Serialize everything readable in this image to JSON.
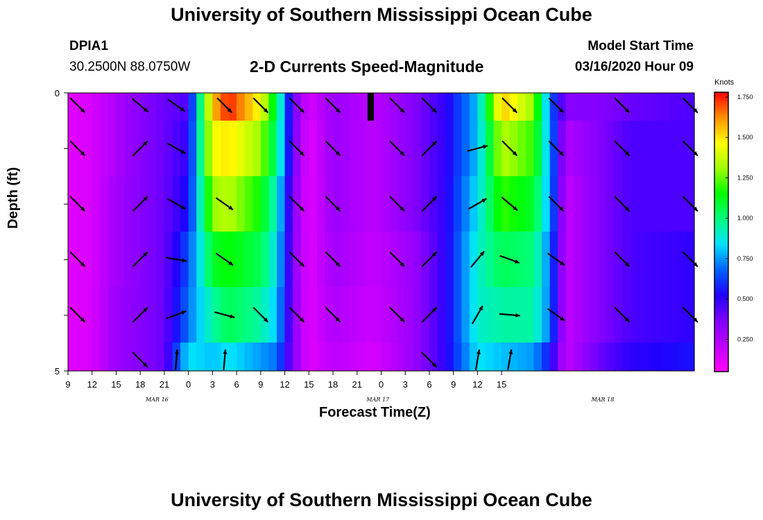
{
  "header": {
    "title": "University of Southern Mississippi Ocean Cube",
    "station_id": "DPIA1",
    "station_coords": "30.2500N 88.0750W",
    "plot_title": "2-D Currents Speed-Magnitude",
    "start_label": "Model Start Time",
    "start_value": "03/16/2020 Hour 09"
  },
  "footer": {
    "title": "University of Southern Mississippi Ocean Cube"
  },
  "chart_data": {
    "type": "heatmap",
    "xlabel": "Forecast Time(Z)",
    "ylabel": "Depth (ft)",
    "x_tick_labels": [
      "9",
      "12",
      "15",
      "18",
      "21",
      "0",
      "3",
      "6",
      "9",
      "12",
      "15",
      "18",
      "21",
      "0",
      "3",
      "6",
      "9",
      "12",
      "15"
    ],
    "date_labels": [
      {
        "label": "MAR 16",
        "hour_offset": 8.5
      },
      {
        "label": "MAR 17",
        "hour_offset": 36
      },
      {
        "label": "MAR 18",
        "hour_offset": 64
      }
    ],
    "y_tick_labels": [
      "0",
      "5"
    ],
    "ylim": [
      0,
      5
    ],
    "x_hours": 78,
    "colorbar": {
      "label": "Knots",
      "min": 0.05,
      "max": 1.78,
      "ticks": [
        0.25,
        0.5,
        0.75,
        1.0,
        1.25,
        1.5,
        1.75
      ],
      "tick_labels": [
        "0.250",
        "0.500",
        "0.750",
        "1.000",
        "1.250",
        "1.500",
        "1.750"
      ],
      "colors": [
        "#ff00ff",
        "#c000ff",
        "#8000ff",
        "#2000ff",
        "#0060ff",
        "#00e0ff",
        "#00ff80",
        "#00ff00",
        "#a0ff00",
        "#ffff00",
        "#ff9000",
        "#ff0000"
      ]
    },
    "speed_keyframes": [
      {
        "h": 0,
        "v": [
          0.12,
          0.12,
          0.12,
          0.12,
          0.12,
          0.12
        ]
      },
      {
        "h": 3,
        "v": [
          0.15,
          0.15,
          0.15,
          0.15,
          0.15,
          0.15
        ]
      },
      {
        "h": 6,
        "v": [
          0.25,
          0.25,
          0.28,
          0.28,
          0.3,
          0.3
        ]
      },
      {
        "h": 9,
        "v": [
          0.35,
          0.35,
          0.35,
          0.35,
          0.35,
          0.35
        ]
      },
      {
        "h": 12,
        "v": [
          0.4,
          0.4,
          0.4,
          0.4,
          0.4,
          0.4
        ]
      },
      {
        "h": 15,
        "v": [
          0.45,
          0.5,
          0.55,
          0.65,
          0.7,
          0.85
        ]
      },
      {
        "h": 18,
        "v": [
          1.55,
          1.45,
          1.3,
          1.1,
          0.95,
          0.8
        ]
      },
      {
        "h": 20,
        "v": [
          1.75,
          1.5,
          1.35,
          1.15,
          1.05,
          0.85
        ]
      },
      {
        "h": 24,
        "v": [
          1.45,
          1.3,
          1.15,
          1.05,
          0.95,
          0.75
        ]
      },
      {
        "h": 26,
        "v": [
          1.05,
          1.0,
          0.9,
          0.85,
          0.8,
          0.7
        ]
      },
      {
        "h": 28,
        "v": [
          0.4,
          0.4,
          0.35,
          0.35,
          0.35,
          0.35
        ]
      },
      {
        "h": 30,
        "v": [
          0.15,
          0.12,
          0.12,
          0.12,
          0.12,
          0.12
        ]
      },
      {
        "h": 33,
        "v": [
          0.3,
          0.3,
          0.3,
          0.28,
          0.25,
          0.22
        ]
      },
      {
        "h": 38,
        "v": [
          0.22,
          0.22,
          0.22,
          0.2,
          0.18,
          0.15
        ]
      },
      {
        "h": 43,
        "v": [
          0.35,
          0.35,
          0.35,
          0.3,
          0.3,
          0.3
        ]
      },
      {
        "h": 47,
        "v": [
          0.5,
          0.5,
          0.5,
          0.5,
          0.5,
          0.5
        ]
      },
      {
        "h": 51,
        "v": [
          0.8,
          0.8,
          0.85,
          0.9,
          0.9,
          0.85
        ]
      },
      {
        "h": 54,
        "v": [
          1.55,
          1.35,
          1.2,
          1.05,
          0.95,
          0.8
        ]
      },
      {
        "h": 58,
        "v": [
          1.3,
          1.2,
          1.1,
          1.0,
          0.95,
          0.75
        ]
      },
      {
        "h": 60,
        "v": [
          0.7,
          0.75,
          0.75,
          0.7,
          0.7,
          0.55
        ]
      },
      {
        "h": 62,
        "v": [
          0.35,
          0.25,
          0.2,
          0.2,
          0.2,
          0.2
        ]
      },
      {
        "h": 66,
        "v": [
          0.35,
          0.35,
          0.35,
          0.35,
          0.35,
          0.4
        ]
      },
      {
        "h": 70,
        "v": [
          0.4,
          0.45,
          0.45,
          0.45,
          0.45,
          0.5
        ]
      },
      {
        "h": 78,
        "v": [
          0.45,
          0.45,
          0.45,
          0.5,
          0.5,
          0.55
        ]
      }
    ],
    "vector_columns": [
      1.2,
      9,
      13.5,
      19.5,
      24,
      28.5,
      33,
      41,
      45,
      51,
      55,
      60.8,
      69,
      77.5
    ],
    "vector_angles_deg": [
      [
        45,
        45,
        45,
        45,
        45,
        45,
        45,
        45,
        45,
        45,
        45,
        45,
        45,
        45,
        45,
        45
      ],
      [
        45,
        135,
        30,
        45,
        45,
        45,
        45,
        45,
        135,
        45,
        135,
        45,
        45,
        45,
        45,
        45
      ]
    ],
    "vectors": [
      {
        "col": 0,
        "row": 0,
        "a": 45
      },
      {
        "col": 0,
        "row": 1,
        "a": 45
      },
      {
        "col": 0,
        "row": 2,
        "a": 45
      },
      {
        "col": 0,
        "row": 3,
        "a": 45
      },
      {
        "col": 0,
        "row": 4,
        "a": 45
      },
      {
        "col": 1,
        "row": 0,
        "a": 40
      },
      {
        "col": 1,
        "row": 1,
        "a": -45
      },
      {
        "col": 1,
        "row": 2,
        "a": -45
      },
      {
        "col": 1,
        "row": 3,
        "a": -45
      },
      {
        "col": 1,
        "row": 4,
        "a": -45
      },
      {
        "col": 1,
        "row": 5,
        "a": 45
      },
      {
        "col": 2,
        "row": 0,
        "a": 35
      },
      {
        "col": 2,
        "row": 1,
        "a": 30
      },
      {
        "col": 2,
        "row": 2,
        "a": 30
      },
      {
        "col": 2,
        "row": 3,
        "a": 10
      },
      {
        "col": 2,
        "row": 4,
        "a": -20
      },
      {
        "col": 2,
        "row": 5,
        "a": -85
      },
      {
        "col": 3,
        "row": 0,
        "a": 45
      },
      {
        "col": 3,
        "row": 2,
        "a": 35
      },
      {
        "col": 3,
        "row": 3,
        "a": 35
      },
      {
        "col": 3,
        "row": 4,
        "a": 15
      },
      {
        "col": 3,
        "row": 5,
        "a": -85
      },
      {
        "col": 4,
        "row": 0,
        "a": 45
      },
      {
        "col": 4,
        "row": 4,
        "a": 45
      },
      {
        "col": 5,
        "row": 0,
        "a": 45
      },
      {
        "col": 5,
        "row": 1,
        "a": 45
      },
      {
        "col": 5,
        "row": 2,
        "a": 45
      },
      {
        "col": 5,
        "row": 3,
        "a": 45
      },
      {
        "col": 5,
        "row": 4,
        "a": 45
      },
      {
        "col": 6,
        "row": 0,
        "a": 45
      },
      {
        "col": 6,
        "row": 1,
        "a": 45
      },
      {
        "col": 6,
        "row": 2,
        "a": 45
      },
      {
        "col": 6,
        "row": 3,
        "a": 45
      },
      {
        "col": 6,
        "row": 4,
        "a": 45
      },
      {
        "col": 7,
        "row": 0,
        "a": 45
      },
      {
        "col": 7,
        "row": 1,
        "a": 45
      },
      {
        "col": 7,
        "row": 2,
        "a": 45
      },
      {
        "col": 7,
        "row": 3,
        "a": 45
      },
      {
        "col": 7,
        "row": 4,
        "a": 45
      },
      {
        "col": 8,
        "row": 0,
        "a": 45
      },
      {
        "col": 8,
        "row": 1,
        "a": -45
      },
      {
        "col": 8,
        "row": 2,
        "a": -45
      },
      {
        "col": 8,
        "row": 3,
        "a": -45
      },
      {
        "col": 8,
        "row": 4,
        "a": -45
      },
      {
        "col": 8,
        "row": 5,
        "a": 45
      },
      {
        "col": 9,
        "row": 1,
        "a": -15
      },
      {
        "col": 9,
        "row": 2,
        "a": -30
      },
      {
        "col": 9,
        "row": 3,
        "a": -50
      },
      {
        "col": 9,
        "row": 4,
        "a": -60
      },
      {
        "col": 9,
        "row": 5,
        "a": -80
      },
      {
        "col": 10,
        "row": 0,
        "a": 45
      },
      {
        "col": 10,
        "row": 1,
        "a": 45
      },
      {
        "col": 10,
        "row": 2,
        "a": 40
      },
      {
        "col": 10,
        "row": 3,
        "a": 20
      },
      {
        "col": 10,
        "row": 4,
        "a": 5
      },
      {
        "col": 10,
        "row": 5,
        "a": -80
      },
      {
        "col": 11,
        "row": 0,
        "a": 45
      },
      {
        "col": 11,
        "row": 1,
        "a": 45
      },
      {
        "col": 11,
        "row": 2,
        "a": 45
      },
      {
        "col": 11,
        "row": 3,
        "a": 35
      },
      {
        "col": 11,
        "row": 4,
        "a": 35
      },
      {
        "col": 12,
        "row": 0,
        "a": 45
      },
      {
        "col": 12,
        "row": 1,
        "a": 45
      },
      {
        "col": 12,
        "row": 2,
        "a": 45
      },
      {
        "col": 12,
        "row": 3,
        "a": 45
      },
      {
        "col": 12,
        "row": 4,
        "a": 45
      },
      {
        "col": 13,
        "row": 0,
        "a": 45
      },
      {
        "col": 13,
        "row": 1,
        "a": 45
      },
      {
        "col": 13,
        "row": 2,
        "a": 45
      },
      {
        "col": 13,
        "row": 3,
        "a": 45
      },
      {
        "col": 13,
        "row": 4,
        "a": 45
      }
    ]
  }
}
